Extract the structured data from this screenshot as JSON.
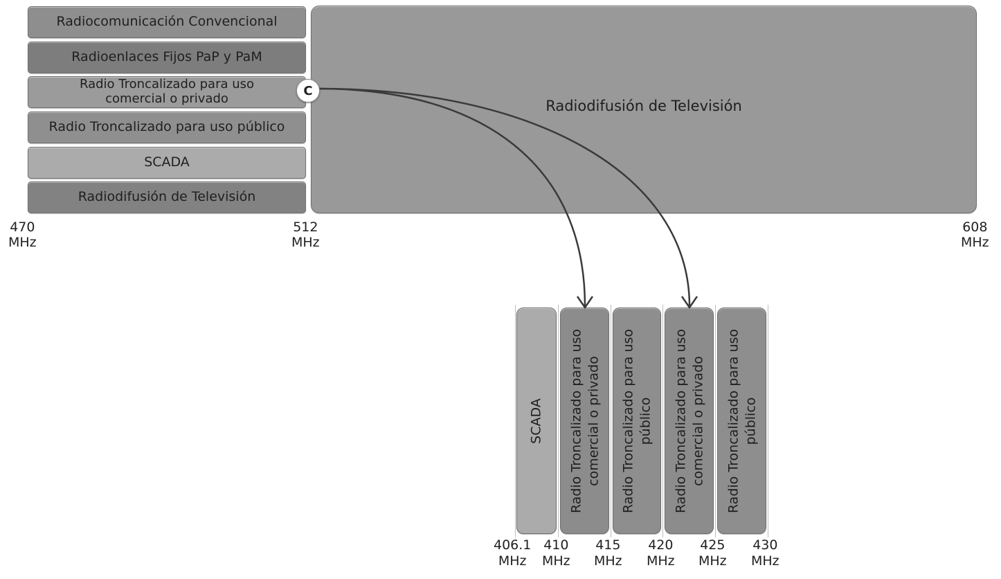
{
  "upper": {
    "bands": [
      {
        "label": "Radiocomunicación Convencional",
        "color": "#8e8e8e"
      },
      {
        "label": "Radioenlaces Fijos PaP y PaM",
        "color": "#7d7d7d"
      },
      {
        "label": "Radio Troncalizado para uso comercial o privado",
        "color": "#9b9b9b"
      },
      {
        "label": "Radio Troncalizado para uso público",
        "color": "#8f8f8f"
      },
      {
        "label": "SCADA",
        "color": "#ababab"
      },
      {
        "label": "Radiodifusión de Televisión",
        "color": "#828282"
      }
    ],
    "tv_block": {
      "label": "Radiodifusión de Televisión",
      "color": "#999999"
    },
    "ticks": [
      {
        "value": "470",
        "unit": "MHz"
      },
      {
        "value": "512",
        "unit": "MHz"
      },
      {
        "value": "608",
        "unit": "MHz"
      }
    ],
    "marker": "C"
  },
  "lower": {
    "channels": [
      {
        "label": "SCADA",
        "color": "#ababab"
      },
      {
        "label": "Radio Troncalizado para uso comercial o privado",
        "color": "#8c8c8c"
      },
      {
        "label": "Radio Troncalizado para uso público",
        "color": "#8e8e8e"
      },
      {
        "label": "Radio Troncalizado para uso comercial o privado",
        "color": "#8c8c8c"
      },
      {
        "label": "Radio Troncalizado para uso público",
        "color": "#8e8e8e"
      }
    ],
    "ticks": [
      {
        "value": "406.1",
        "unit": "MHz"
      },
      {
        "value": "410",
        "unit": "MHz"
      },
      {
        "value": "415",
        "unit": "MHz"
      },
      {
        "value": "420",
        "unit": "MHz"
      },
      {
        "value": "425",
        "unit": "MHz"
      },
      {
        "value": "430",
        "unit": "MHz"
      }
    ]
  },
  "colors": {
    "arrow": "#3a3a3a"
  }
}
